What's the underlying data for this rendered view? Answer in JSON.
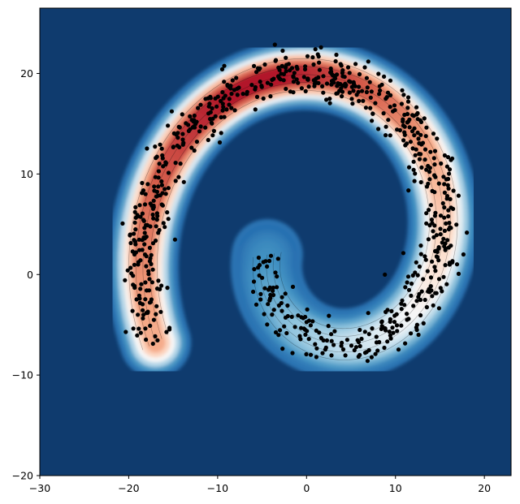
{
  "chart_data": {
    "type": "contour",
    "title": "",
    "xlabel": "",
    "ylabel": "",
    "xlim": [
      -30,
      23
    ],
    "ylim": [
      -20,
      26.5
    ],
    "xticks": [
      -30,
      -20,
      -10,
      0,
      10,
      20
    ],
    "yticks": [
      -20,
      -10,
      0,
      10,
      20
    ],
    "xtick_labels": [
      "−30",
      "−20",
      "−10",
      "0",
      "10",
      "20"
    ],
    "ytick_labels": [
      "−20",
      "−10",
      "0",
      "10",
      "20"
    ],
    "grid": false,
    "legend": "none",
    "colormap": "RdBu_r",
    "background_color": "#0f3b6e",
    "point_color": "#000000",
    "spiral": {
      "description_values_in_data_units": true,
      "center": [
        2,
        3
      ],
      "theta_start_rad": 3.3,
      "theta_end_rad": 9.9,
      "radius_start": 6.5,
      "radius_growth_per_rad": 2.25,
      "band_half_width": 1.6
    },
    "point_count": 800
  }
}
